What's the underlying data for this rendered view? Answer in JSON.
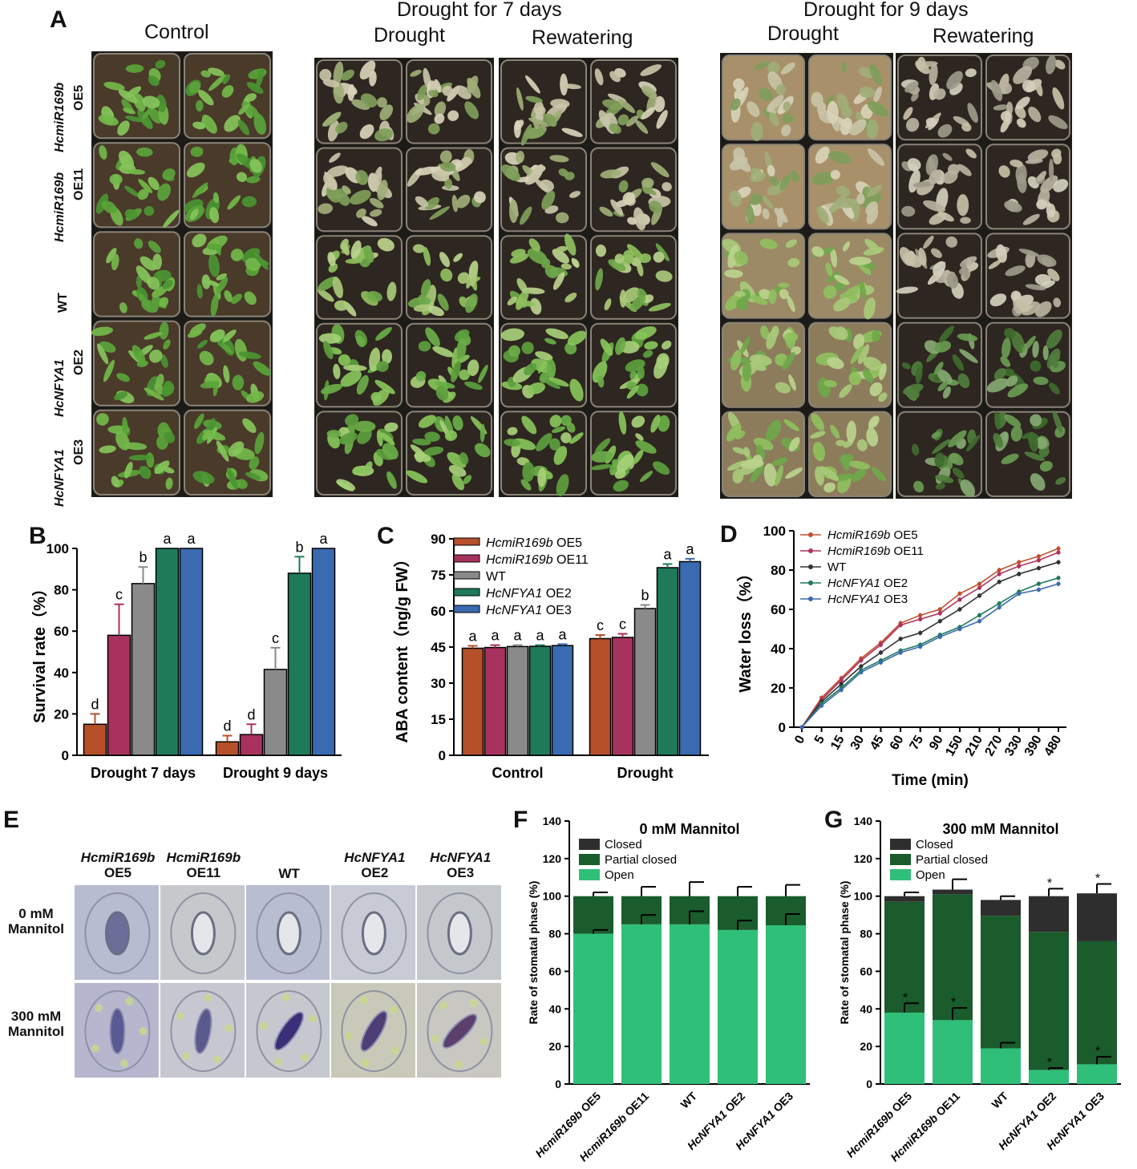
{
  "panels": {
    "A": "A",
    "B": "B",
    "C": "C",
    "D": "D",
    "E": "E",
    "F": "F",
    "G": "G"
  },
  "panelA": {
    "control_title": "Control",
    "drought7_title": "Drought for 7 days",
    "drought9_title": "Drought for 9 days",
    "drought_label": "Drought",
    "rewatering_label": "Rewatering",
    "rows": [
      {
        "gene": "HcmiR169b",
        "line": "OE5"
      },
      {
        "gene": "HcmiR169b",
        "line": "OE11"
      },
      {
        "gene": "",
        "line": "WT"
      },
      {
        "gene": "HcNFYA1",
        "line": "OE2"
      },
      {
        "gene": "HcNFYA1",
        "line": "OE3"
      }
    ]
  },
  "panelE": {
    "cols": [
      {
        "gene": "HcmiR169b",
        "line": "OE5"
      },
      {
        "gene": "HcmiR169b",
        "line": "OE11"
      },
      {
        "gene": "",
        "line": "WT"
      },
      {
        "gene": "HcNFYA1",
        "line": "OE2"
      },
      {
        "gene": "HcNFYA1",
        "line": "OE3"
      }
    ],
    "row1": [
      "0 mM",
      "Mannitol"
    ],
    "row2": [
      "300 mM",
      "Mannitol"
    ]
  },
  "colors": {
    "oe5": "#b5502b",
    "oe11": "#a8325e",
    "wt": "#8a8a8a",
    "oe2": "#1f7a5a",
    "oe3": "#3a6ab0",
    "closed": "#2e2e2e",
    "partial": "#1a5c2c",
    "open": "#2fbf79"
  },
  "chart_data": [
    {
      "id": "B",
      "type": "bar",
      "categories": [
        "Drought 7 days",
        "Drought 9 days"
      ],
      "ylabel": "Survival rate（%）",
      "ylim": [
        0,
        100
      ],
      "yticks": [
        "0",
        "20",
        "40",
        "60",
        "80",
        "100"
      ],
      "series": [
        {
          "values": [
            15,
            6.5
          ],
          "err": [
            5,
            3
          ],
          "letters": [
            "d",
            "d"
          ]
        },
        {
          "values": [
            58,
            10
          ],
          "err": [
            15,
            5
          ],
          "letters": [
            "c",
            "d"
          ]
        },
        {
          "values": [
            83,
            41.5
          ],
          "err": [
            8,
            10.5
          ],
          "letters": [
            "b",
            "c"
          ]
        },
        {
          "values": [
            100,
            88
          ],
          "err": [
            0,
            8
          ],
          "letters": [
            "a",
            "b"
          ]
        },
        {
          "values": [
            100,
            100
          ],
          "err": [
            0,
            0
          ],
          "letters": [
            "a",
            "a"
          ]
        }
      ]
    },
    {
      "id": "C",
      "type": "bar",
      "categories": [
        "Control",
        "Drought"
      ],
      "ylabel": "ABA content（ng/g FW）",
      "ylim": [
        0,
        90
      ],
      "yticks": [
        "0",
        "15",
        "30",
        "45",
        "60",
        "75",
        "90"
      ],
      "legend": [
        {
          "gene": "HcmiR169b",
          "line": " OE5"
        },
        {
          "gene": "HcmiR169b",
          "line": " OE11"
        },
        {
          "gene": "",
          "line": "WT"
        },
        {
          "gene": "HcNFYA1",
          "line": " OE2"
        },
        {
          "gene": "HcNFYA1",
          "line": " OE3"
        }
      ],
      "series": [
        {
          "name": "HcmiR169b OE5",
          "values": [
            44.5,
            48.5
          ],
          "err": [
            1,
            1.5
          ],
          "letters": [
            "a",
            "c"
          ]
        },
        {
          "name": "HcmiR169b OE11",
          "values": [
            44.8,
            49
          ],
          "err": [
            1,
            1.5
          ],
          "letters": [
            "a",
            "c"
          ]
        },
        {
          "name": "WT",
          "values": [
            45.2,
            61
          ],
          "err": [
            0.6,
            1.5
          ],
          "letters": [
            "a",
            "b"
          ]
        },
        {
          "name": "HcNFYA1 OE2",
          "values": [
            45.3,
            78
          ],
          "err": [
            0.5,
            1.5
          ],
          "letters": [
            "a",
            "a"
          ]
        },
        {
          "name": "HcNFYA1 OE3",
          "values": [
            45.6,
            80.5
          ],
          "err": [
            0.6,
            1.2
          ],
          "letters": [
            "a",
            "a"
          ]
        }
      ]
    },
    {
      "id": "D",
      "type": "line",
      "xlabel": "Time (min)",
      "ylabel": "Water loss（%）",
      "ylim": [
        0,
        100
      ],
      "yticks": [
        "0",
        "20",
        "40",
        "60",
        "80",
        "100"
      ],
      "x": [
        "0",
        "5",
        "15",
        "30",
        "45",
        "60",
        "75",
        "90",
        "150",
        "210",
        "270",
        "330",
        "390",
        "480"
      ],
      "legend": [
        {
          "gene": "HcmiR169b",
          "line": " OE5"
        },
        {
          "gene": "HcmiR169b",
          "line": " OE11"
        },
        {
          "gene": "",
          "line": "WT"
        },
        {
          "gene": "HcNFYA1",
          "line": " OE2"
        },
        {
          "gene": "HcNFYA1",
          "line": " OE3"
        }
      ],
      "series": [
        {
          "name": "HcmiR169b OE5",
          "values": [
            0,
            15,
            25,
            35,
            43,
            53,
            57,
            60,
            68,
            73,
            80,
            84,
            87,
            91
          ]
        },
        {
          "name": "HcmiR169b OE11",
          "values": [
            0,
            14,
            24,
            34,
            42,
            52,
            55,
            58,
            65,
            71,
            78,
            82,
            85,
            89
          ]
        },
        {
          "name": "WT",
          "values": [
            0,
            13,
            22,
            31,
            38,
            45,
            48,
            54,
            60,
            67,
            74,
            78,
            81,
            84
          ]
        },
        {
          "name": "HcNFYA1 OE2",
          "values": [
            0,
            12,
            20,
            29,
            34,
            39,
            42,
            47,
            51,
            57,
            63,
            69,
            73,
            76
          ]
        },
        {
          "name": "HcNFYA1 OE3",
          "values": [
            0,
            11,
            19,
            28,
            33,
            38,
            41,
            46,
            50,
            54,
            61,
            68,
            70,
            73
          ]
        }
      ]
    },
    {
      "id": "F",
      "type": "bar",
      "title": "0 mM Mannitol",
      "ylabel": "Rate of stomatal phase (%)",
      "ylim": [
        0,
        140
      ],
      "yticks": [
        "0",
        "20",
        "40",
        "60",
        "80",
        "100",
        "120",
        "140"
      ],
      "categories": [
        {
          "gene": "HcmiR169b",
          "line": " OE5"
        },
        {
          "gene": "HcmiR169b",
          "line": " OE11"
        },
        {
          "gene": "",
          "line": "WT"
        },
        {
          "gene": "HcNFYA1",
          "line": " OE2"
        },
        {
          "gene": "HcNFYA1",
          "line": " OE3"
        }
      ],
      "legend": [
        "Closed",
        "Partial closed",
        "Open"
      ],
      "open": [
        80,
        85,
        85,
        82,
        84.5
      ],
      "partial": [
        20,
        15,
        15,
        18,
        15.5
      ],
      "closed": [
        0,
        0,
        0,
        0,
        0
      ],
      "err_open": [
        2,
        5,
        7,
        5,
        6
      ],
      "err_total": [
        2,
        5,
        7.5,
        5,
        6
      ],
      "stars_top": [
        "",
        "",
        "",
        "",
        ""
      ],
      "stars_open": [
        "",
        "",
        "",
        "",
        ""
      ]
    },
    {
      "id": "G",
      "type": "bar",
      "title": "300 mM Mannitol",
      "ylabel": "Rate of stomatal phase (%)",
      "ylim": [
        0,
        140
      ],
      "yticks": [
        "0",
        "20",
        "40",
        "60",
        "80",
        "100",
        "120",
        "140"
      ],
      "categories": [
        {
          "gene": "HcmiR169b",
          "line": " OE5"
        },
        {
          "gene": "HcmiR169b",
          "line": " OE11"
        },
        {
          "gene": "",
          "line": "WT"
        },
        {
          "gene": "HcNFYA1",
          "line": " OE2"
        },
        {
          "gene": "HcNFYA1",
          "line": " OE3"
        }
      ],
      "legend": [
        "Closed",
        "Partial closed",
        "Open"
      ],
      "open": [
        38,
        34,
        19,
        7.5,
        10.5
      ],
      "partial": [
        59,
        67,
        70.5,
        73.5,
        65.5
      ],
      "closed": [
        3,
        2.5,
        8.5,
        19,
        25.5
      ],
      "err_open": [
        5,
        6.5,
        3,
        1,
        4
      ],
      "err_total": [
        2,
        5.5,
        2,
        4,
        5
      ],
      "stars_top": [
        "",
        "",
        "",
        "*",
        "*"
      ],
      "stars_open": [
        "*",
        "*",
        "",
        "*",
        "*"
      ]
    }
  ]
}
